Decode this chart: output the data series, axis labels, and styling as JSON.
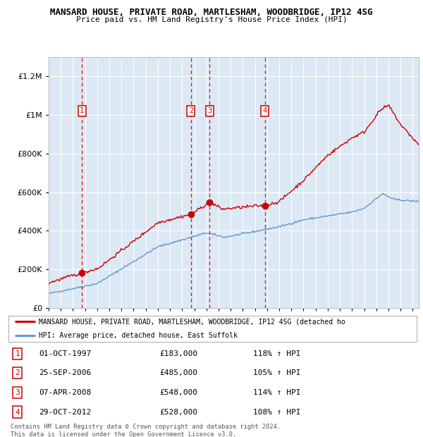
{
  "title": "MANSARD HOUSE, PRIVATE ROAD, MARTLESHAM, WOODBRIDGE, IP12 4SG",
  "subtitle": "Price paid vs. HM Land Registry's House Price Index (HPI)",
  "ylim": [
    0,
    1300000
  ],
  "yticks": [
    0,
    200000,
    400000,
    600000,
    800000,
    1000000,
    1200000
  ],
  "ytick_labels": [
    "£0",
    "£200K",
    "£400K",
    "£600K",
    "£800K",
    "£1M",
    "£1.2M"
  ],
  "background_color": "#dce9f5",
  "transactions": [
    {
      "label": 1,
      "date_num": 1997.75,
      "price": 183000,
      "date_str": "01-OCT-1997",
      "pct": "118%",
      "dir": "↑"
    },
    {
      "label": 2,
      "date_num": 2006.73,
      "price": 485000,
      "date_str": "25-SEP-2006",
      "pct": "105%",
      "dir": "↑"
    },
    {
      "label": 3,
      "date_num": 2008.27,
      "price": 548000,
      "date_str": "07-APR-2008",
      "pct": "114%",
      "dir": "↑"
    },
    {
      "label": 4,
      "date_num": 2012.83,
      "price": 528000,
      "date_str": "29-OCT-2012",
      "pct": "108%",
      "dir": "↑"
    }
  ],
  "xmin": 1995.0,
  "xmax": 2025.5,
  "xticks": [
    1995,
    1996,
    1997,
    1998,
    1999,
    2000,
    2001,
    2002,
    2003,
    2004,
    2005,
    2006,
    2007,
    2008,
    2009,
    2010,
    2011,
    2012,
    2013,
    2014,
    2015,
    2016,
    2017,
    2018,
    2019,
    2020,
    2021,
    2022,
    2023,
    2024,
    2025
  ],
  "red_line_color": "#cc0000",
  "blue_line_color": "#6699cc",
  "transaction_dot_color": "#cc0000",
  "vline_color": "#ff0000",
  "label_box_color": "#cc0000",
  "footer_text": "Contains HM Land Registry data © Crown copyright and database right 2024.\nThis data is licensed under the Open Government Licence v3.0.",
  "legend_red_label": "MANSARD HOUSE, PRIVATE ROAD, MARTLESHAM, WOODBRIDGE, IP12 4SG (detached ho",
  "legend_blue_label": "HPI: Average price, detached house, East Suffolk"
}
